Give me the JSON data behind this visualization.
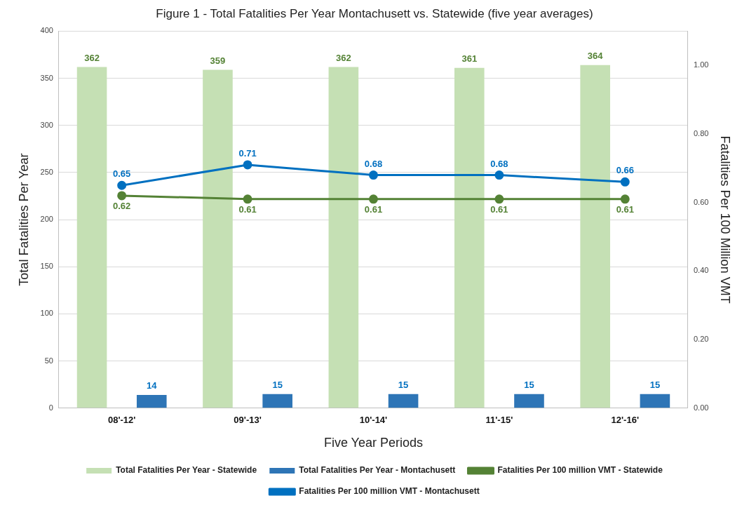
{
  "chart_data": {
    "type": "bar",
    "title": "Figure 1 - Total Fatalities Per Year Montachusett vs. Statewide (five year averages)",
    "xlabel": "Five Year Periods",
    "ylabel": "Total Fatalities Per Year",
    "y2label": "Fatalities Per 100 Million VMT",
    "categories": [
      "08'-12'",
      "09'-13'",
      "10'-14'",
      "11'-15'",
      "12'-16'"
    ],
    "series": [
      {
        "name": "Total Fatalities Per Year - Statewide",
        "color": "#c5e0b4",
        "values": [
          362,
          359,
          362,
          361,
          364
        ]
      },
      {
        "name": "Total Fatalities Per Year - Montachusett",
        "color": "#2e75b6",
        "values": [
          14,
          15,
          15,
          15,
          15
        ]
      },
      {
        "name": "Fatalities Per 100 million VMT - Statewide",
        "type": "line",
        "axis": "y2",
        "color": "#548235",
        "values": [
          0.62,
          0.61,
          0.61,
          0.61,
          0.61
        ]
      },
      {
        "name": "Fatalities Per 100 million VMT - Montachusett",
        "type": "line",
        "axis": "y2",
        "color": "#0070c0",
        "values": [
          0.65,
          0.71,
          0.68,
          0.68,
          0.66
        ]
      }
    ],
    "ylim": [
      0,
      400
    ],
    "yticks": [
      0,
      50,
      100,
      150,
      200,
      250,
      300,
      350,
      400
    ],
    "y2lim": [
      0,
      1.1
    ],
    "y2ticks": [
      {
        "value": 0,
        "label": "0.00"
      },
      {
        "value": 0.2,
        "label": "0.20"
      },
      {
        "value": 0.4,
        "label": "0.40"
      },
      {
        "value": 0.6,
        "label": "0.60"
      },
      {
        "value": 0.8,
        "label": "0.80"
      },
      {
        "value": 1.0,
        "label": "1.00"
      }
    ],
    "grid": "y",
    "legend": "bottom",
    "marker": "circle",
    "line_style": "solid",
    "data_labels": true
  }
}
